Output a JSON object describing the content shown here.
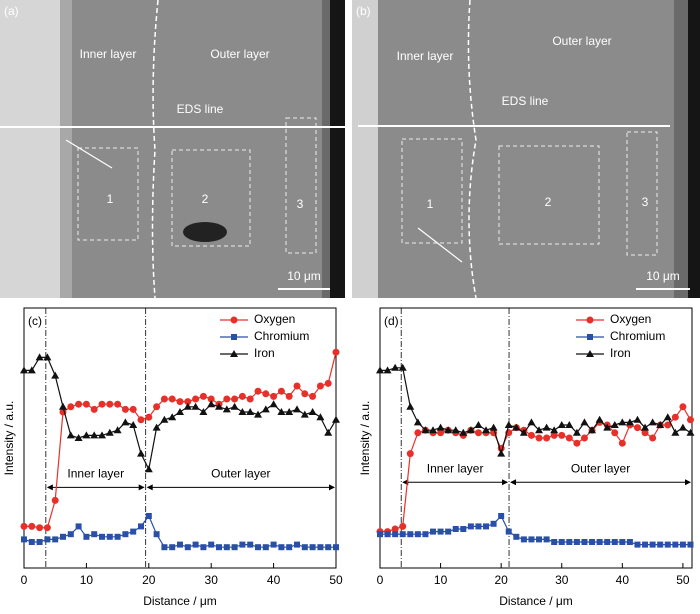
{
  "images": [
    {
      "texts": [
        "(a)",
        "Inner layer",
        "Outer layer",
        "EDS line",
        "1",
        "2",
        "3",
        "10 μm"
      ]
    },
    {
      "texts": [
        "(b)",
        "Inner layer",
        "Outer layer",
        "EDS line",
        "1",
        "2",
        "3",
        "10 μm"
      ]
    }
  ],
  "chart_data": [
    {
      "type": "line",
      "panel": "(c)",
      "xlabel": "Distance / μm",
      "ylabel": "Intensity / a.u.",
      "xlim": [
        0,
        50
      ],
      "xticks": [
        0,
        10,
        20,
        30,
        40,
        50
      ],
      "ylim": [
        0,
        100
      ],
      "boundaries": [
        3.5,
        19.5
      ],
      "regions": [
        "Inner layer",
        "Outer layer"
      ],
      "region_level": 31,
      "x": [
        0,
        1.25,
        2.5,
        3.75,
        5,
        6.25,
        7.5,
        8.75,
        10,
        11.25,
        12.5,
        13.75,
        15,
        16.25,
        17.5,
        18.75,
        20,
        21.25,
        22.5,
        23.75,
        25,
        26.25,
        27.5,
        28.75,
        30,
        31.25,
        32.5,
        33.75,
        35,
        36.25,
        37.5,
        38.75,
        40,
        41.25,
        42.5,
        43.75,
        45,
        46.25,
        47.5,
        48.75,
        50
      ],
      "series": [
        {
          "name": "Oxygen",
          "color": "#e8302a",
          "marker": "circle",
          "values": [
            16,
            16,
            15.5,
            15.5,
            26,
            60,
            62,
            63,
            63,
            61,
            63,
            63,
            63,
            61,
            61,
            57,
            58,
            62,
            65,
            65,
            64,
            64,
            65,
            66,
            65,
            63,
            65,
            65,
            66,
            65,
            68,
            67,
            66,
            68,
            66,
            70,
            67,
            66,
            70,
            71,
            83
          ]
        },
        {
          "name": "Chromium",
          "color": "#2a4fa8",
          "marker": "square",
          "values": [
            11,
            10,
            10,
            11,
            11,
            12,
            13,
            16,
            12,
            13,
            12,
            12,
            12,
            13,
            14,
            16,
            20,
            13,
            8,
            8,
            9,
            8,
            9,
            8,
            9,
            8,
            8,
            8,
            9,
            9,
            8,
            8,
            9,
            8,
            8,
            9,
            8,
            8,
            8,
            8,
            8
          ]
        },
        {
          "name": "Iron",
          "color": "#111111",
          "marker": "triangle",
          "values": [
            76,
            76,
            81,
            81,
            74,
            62,
            51,
            50,
            51,
            51,
            51,
            52,
            53,
            56,
            55,
            44,
            38,
            54,
            57,
            58,
            60,
            62,
            62,
            60,
            63,
            62,
            61,
            62,
            60,
            60,
            59,
            61,
            63,
            60,
            60,
            61,
            59,
            60,
            58,
            52,
            57
          ]
        }
      ]
    },
    {
      "type": "line",
      "panel": "(d)",
      "xlabel": "Distance / μm",
      "ylabel": "Intensity / a.u.",
      "xlim": [
        0,
        51.5
      ],
      "xticks": [
        0,
        10,
        20,
        30,
        40,
        50
      ],
      "ylim": [
        0,
        100
      ],
      "boundaries": [
        3.5,
        21.3
      ],
      "regions": [
        "Inner layer",
        "Outer layer"
      ],
      "region_level": 33,
      "x": [
        0,
        1.25,
        2.5,
        3.75,
        5,
        6.25,
        7.5,
        8.75,
        10,
        11.25,
        12.5,
        13.75,
        15,
        16.25,
        17.5,
        18.75,
        20,
        21.25,
        22.5,
        23.75,
        25,
        26.25,
        27.5,
        28.75,
        30,
        31.25,
        32.5,
        33.75,
        35,
        36.25,
        37.5,
        38.75,
        40,
        41.25,
        42.5,
        43.75,
        45,
        46.25,
        47.5,
        48.75,
        50,
        51.25
      ],
      "series": [
        {
          "name": "Oxygen",
          "color": "#e8302a",
          "marker": "circle",
          "values": [
            14,
            14,
            15,
            16,
            44,
            52,
            53,
            52,
            52,
            53,
            52,
            51,
            53,
            52,
            52,
            52,
            46,
            52,
            54,
            53,
            51,
            50,
            50,
            51,
            51,
            50,
            48,
            50,
            53,
            56,
            55,
            52,
            48,
            55,
            54,
            52,
            50,
            55,
            55,
            58,
            62,
            57
          ]
        },
        {
          "name": "Chromium",
          "color": "#2a4fa8",
          "marker": "square",
          "values": [
            13,
            13,
            13,
            13,
            13,
            13,
            13,
            14,
            14,
            14,
            15,
            15,
            16,
            16,
            16,
            17,
            20,
            14,
            12,
            11,
            11,
            11,
            11,
            10,
            10,
            10,
            10,
            10,
            10,
            10,
            10,
            10,
            10,
            10,
            9,
            9,
            9,
            9,
            9,
            9,
            9,
            9
          ]
        },
        {
          "name": "Iron",
          "color": "#111111",
          "marker": "triangle",
          "values": [
            76,
            76,
            77,
            77,
            62,
            56,
            53,
            53,
            54,
            53,
            53,
            52,
            53,
            55,
            53,
            54,
            44,
            55,
            54,
            52,
            56,
            53,
            54,
            53,
            55,
            55,
            52,
            56,
            53,
            57,
            54,
            55,
            56,
            56,
            57,
            54,
            56,
            55,
            58,
            52,
            54,
            52
          ]
        }
      ]
    }
  ]
}
